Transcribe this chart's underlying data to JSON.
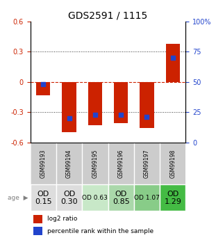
{
  "title": "GDS2591 / 1115",
  "samples": [
    "GSM99193",
    "GSM99194",
    "GSM99195",
    "GSM99196",
    "GSM99197",
    "GSM99198"
  ],
  "log2_ratios": [
    -0.13,
    -0.5,
    -0.43,
    -0.41,
    -0.46,
    0.38
  ],
  "percentile_ranks": [
    48,
    20,
    23,
    23,
    21,
    70
  ],
  "age_values": [
    "OD\n0.15",
    "OD\n0.30",
    "OD 0.63",
    "OD\n0.85",
    "OD 1.07",
    "OD\n1.29"
  ],
  "age_bg_colors": [
    "#dddddd",
    "#dddddd",
    "#c8e8c8",
    "#aad8aa",
    "#88cc88",
    "#44bb44"
  ],
  "age_font_sizes": [
    8,
    8,
    6.5,
    8,
    6.5,
    8
  ],
  "ylim": [
    -0.6,
    0.6
  ],
  "yticks_left": [
    -0.6,
    -0.3,
    0.0,
    0.3,
    0.6
  ],
  "ytick_labels_left": [
    "-0.6",
    "-0.3",
    "0",
    "0.3",
    "0.6"
  ],
  "right_ytick_pcts": [
    0,
    25,
    50,
    75,
    100
  ],
  "bar_color": "#cc2200",
  "dot_color": "#2244cc",
  "bar_width": 0.55,
  "dot_size": 25,
  "title_fontsize": 10,
  "axis_label_color_left": "#cc2200",
  "axis_label_color_right": "#2244cc",
  "hline_color": "#cc2200",
  "dotline_color": "#333333",
  "sample_bg_color": "#cccccc",
  "legend_red_label": "log2 ratio",
  "legend_blue_label": "percentile rank within the sample",
  "age_label": "age"
}
